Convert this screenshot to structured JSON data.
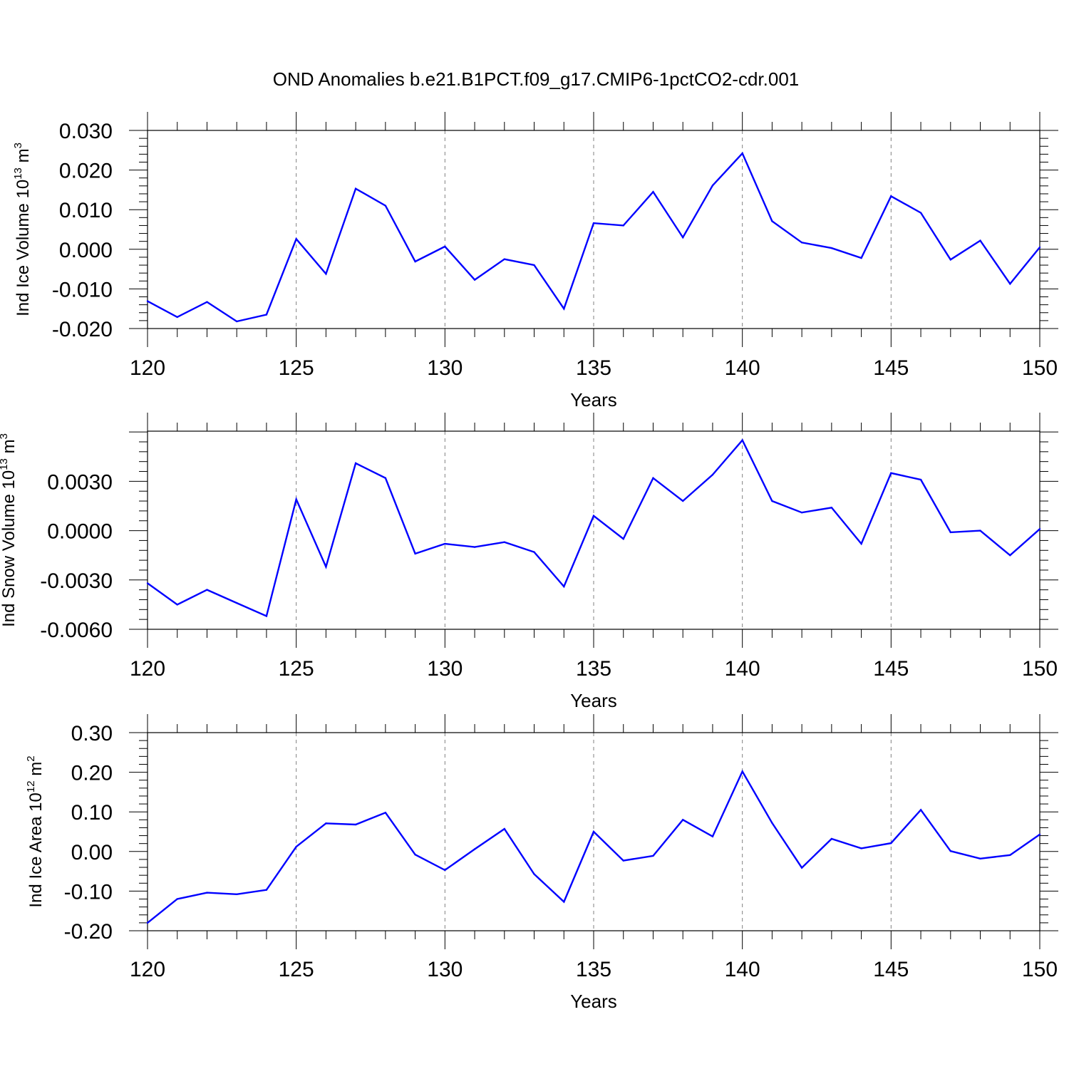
{
  "title": "OND Anomalies b.e21.B1PCT.f09_g17.CMIP6-1pctCO2-cdr.001",
  "colors": {
    "line": "#0000ff",
    "axis": "#000000",
    "grid": "#808080"
  },
  "chart_data": [
    {
      "type": "line",
      "name": "ice-volume",
      "ylabel": {
        "text": "Ind Ice Volume 10",
        "exp": "13",
        "unit": " m",
        "unit_exp": "3"
      },
      "xlabel": "Years",
      "xlim": [
        120,
        150
      ],
      "ylim": [
        -0.02,
        0.03
      ],
      "xticks": [
        120,
        125,
        130,
        135,
        140,
        145,
        150
      ],
      "yticks": [
        -0.02,
        -0.01,
        0.0,
        0.01,
        0.02,
        0.03
      ],
      "ytick_labels": [
        "-0.020",
        "-0.010",
        "0.000",
        "0.010",
        "0.020",
        "0.030"
      ],
      "x": [
        120,
        121,
        122,
        123,
        124,
        125,
        126,
        127,
        128,
        129,
        130,
        131,
        132,
        133,
        134,
        135,
        136,
        137,
        138,
        139,
        140,
        141,
        142,
        143,
        144,
        145,
        146,
        147,
        148,
        149,
        150
      ],
      "values": [
        -0.0131,
        -0.0171,
        -0.0133,
        -0.0182,
        -0.0165,
        0.0026,
        -0.0062,
        0.0153,
        0.011,
        -0.0031,
        0.0007,
        -0.0077,
        -0.0025,
        -0.004,
        -0.015,
        0.0066,
        0.006,
        0.0145,
        0.003,
        0.0161,
        0.0242,
        0.0071,
        0.0017,
        0.0003,
        -0.0022,
        0.0134,
        0.0092,
        -0.0026,
        0.0022,
        -0.0087,
        0.0005
      ]
    },
    {
      "type": "line",
      "name": "snow-volume",
      "ylabel": {
        "text": "Ind Snow Volume 10",
        "exp": "13",
        "unit": " m",
        "unit_exp": "3"
      },
      "xlabel": "Years",
      "xlim": [
        120,
        150
      ],
      "ylim": [
        -0.006,
        0.00605
      ],
      "xticks": [
        120,
        125,
        130,
        135,
        140,
        145,
        150
      ],
      "yticks": [
        -0.006,
        -0.003,
        0.0,
        0.003
      ],
      "ytick_labels": [
        "-0.0060",
        "-0.0030",
        "0.0000",
        "0.0030"
      ],
      "x": [
        120,
        121,
        122,
        123,
        124,
        125,
        126,
        127,
        128,
        129,
        130,
        131,
        132,
        133,
        134,
        135,
        136,
        137,
        138,
        139,
        140,
        141,
        142,
        143,
        144,
        145,
        146,
        147,
        148,
        149,
        150
      ],
      "values": [
        -0.0032,
        -0.0045,
        -0.0036,
        -0.0044,
        -0.0052,
        0.0019,
        -0.0022,
        0.0041,
        0.0032,
        -0.0014,
        -0.0008,
        -0.001,
        -0.0007,
        -0.0013,
        -0.0034,
        0.0009,
        -0.0005,
        0.0032,
        0.0018,
        0.0034,
        0.0055,
        0.0018,
        0.0011,
        0.0014,
        -0.0008,
        0.0035,
        0.0031,
        -0.0001,
        0.0,
        -0.0015,
        0.0001
      ]
    },
    {
      "type": "line",
      "name": "ice-area",
      "ylabel": {
        "text": "Ind Ice Area 10",
        "exp": "12",
        "unit": " m",
        "unit_exp": "2"
      },
      "xlabel": "Years",
      "xlim": [
        120,
        150
      ],
      "ylim": [
        -0.2,
        0.3
      ],
      "xticks": [
        120,
        125,
        130,
        135,
        140,
        145,
        150
      ],
      "yticks": [
        -0.2,
        -0.1,
        0.0,
        0.1,
        0.2,
        0.3
      ],
      "ytick_labels": [
        "-0.20",
        "-0.10",
        "0.00",
        "0.10",
        "0.20",
        "0.30"
      ],
      "x": [
        120,
        121,
        122,
        123,
        124,
        125,
        126,
        127,
        128,
        129,
        130,
        131,
        132,
        133,
        134,
        135,
        136,
        137,
        138,
        139,
        140,
        141,
        142,
        143,
        144,
        145,
        146,
        147,
        148,
        149,
        150
      ],
      "values": [
        -0.18,
        -0.12,
        -0.104,
        -0.108,
        -0.097,
        0.012,
        0.071,
        0.068,
        0.098,
        -0.008,
        -0.047,
        0.006,
        0.057,
        -0.057,
        -0.127,
        0.05,
        -0.023,
        -0.011,
        0.08,
        0.038,
        0.202,
        0.072,
        -0.041,
        0.032,
        0.008,
        0.021,
        0.105,
        0.001,
        -0.018,
        -0.009,
        0.043
      ]
    }
  ]
}
